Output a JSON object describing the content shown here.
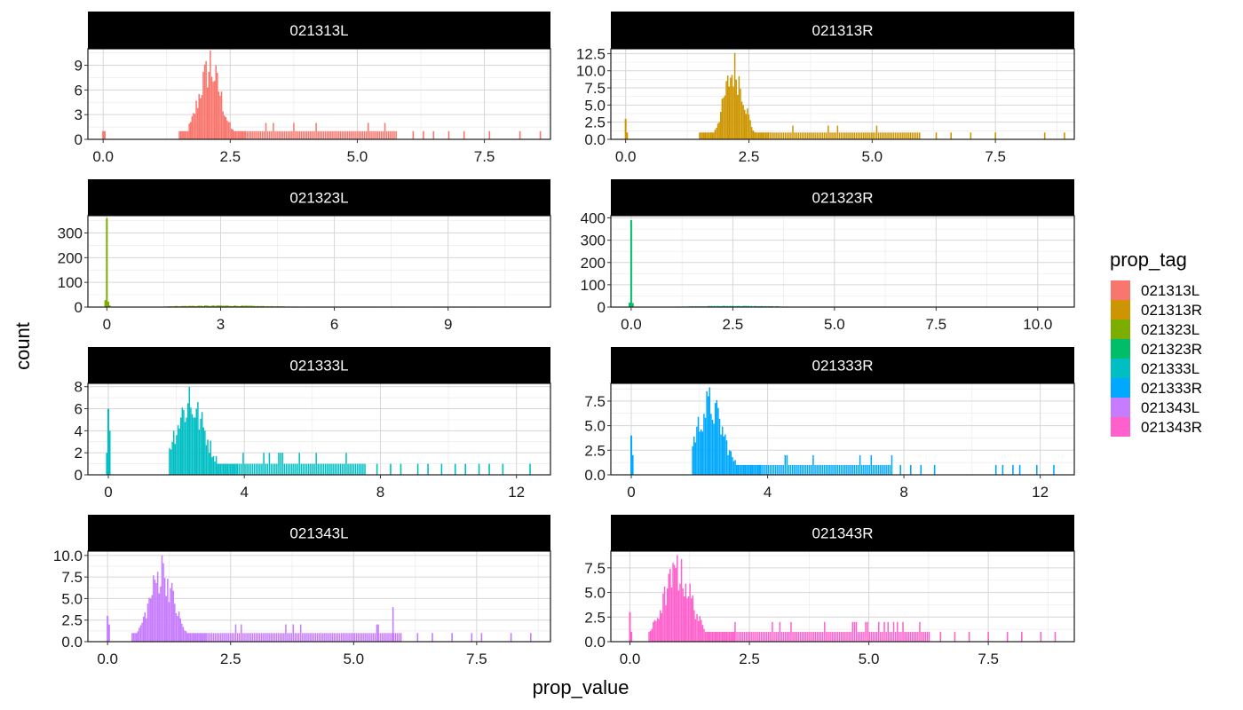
{
  "chart_data": {
    "type": "histogram",
    "layout": "faceted 4 rows x 2 columns, free scales",
    "xlabel": "prop_value",
    "ylabel": "count",
    "legend": {
      "title": "prop_tag",
      "position": "right",
      "entries": [
        {
          "label": "021313L",
          "color": "#F8766D"
        },
        {
          "label": "021313R",
          "color": "#CD9600"
        },
        {
          "label": "021323L",
          "color": "#7CAE00"
        },
        {
          "label": "021323R",
          "color": "#00BE67"
        },
        {
          "label": "021333L",
          "color": "#00BFC4"
        },
        {
          "label": "021333R",
          "color": "#00A9FF"
        },
        {
          "label": "021343L",
          "color": "#C77CFF"
        },
        {
          "label": "021343R",
          "color": "#FF61CC"
        }
      ]
    },
    "grid": true,
    "panels": [
      {
        "name": "021313L",
        "color": "#F8766D",
        "xlim": [
          -0.3,
          8.8
        ],
        "ylim": [
          0,
          11
        ],
        "xticks": [
          0,
          2.5,
          5,
          7.5
        ],
        "xtick_labels": [
          "0.0",
          "2.5",
          "5.0",
          "7.5"
        ],
        "yticks": [
          0,
          3,
          6,
          9
        ],
        "ytick_labels": [
          "0",
          "3",
          "6",
          "9"
        ],
        "spikes": [
          {
            "x": 0,
            "h": 1
          },
          {
            "x": 0.03,
            "h": 1
          }
        ],
        "peak": {
          "start": 1.5,
          "center": 2.1,
          "end": 2.8,
          "max": 10.8,
          "sigma": 0.22
        },
        "tail": {
          "start": 2.8,
          "end": 5.8,
          "level": 1
        },
        "outliers": [
          6.1,
          6.3,
          6.5,
          6.8,
          7.1,
          7.6,
          8.2,
          8.6
        ]
      },
      {
        "name": "021313R",
        "color": "#CD9600",
        "xlim": [
          -0.3,
          9.1
        ],
        "ylim": [
          0,
          13.2
        ],
        "xticks": [
          0,
          2.5,
          5,
          7.5
        ],
        "xtick_labels": [
          "0.0",
          "2.5",
          "5.0",
          "7.5"
        ],
        "yticks": [
          0,
          2.5,
          5,
          7.5,
          10,
          12.5
        ],
        "ytick_labels": [
          "0.0",
          "2.5",
          "5.0",
          "7.5",
          "10.0",
          "12.5"
        ],
        "spikes": [
          {
            "x": 0,
            "h": 3
          },
          {
            "x": 0.03,
            "h": 1
          }
        ],
        "peak": {
          "start": 1.5,
          "center": 2.2,
          "end": 2.9,
          "max": 12.6,
          "sigma": 0.2
        },
        "tail": {
          "start": 2.9,
          "end": 6.0,
          "level": 1
        },
        "outliers": [
          6.3,
          6.6,
          7.0,
          7.5,
          8.5,
          8.9
        ]
      },
      {
        "name": "021323L",
        "color": "#7CAE00",
        "xlim": [
          -0.5,
          11.7
        ],
        "ylim": [
          0,
          370
        ],
        "xticks": [
          0,
          3,
          6,
          9
        ],
        "xtick_labels": [
          "0",
          "3",
          "6",
          "9"
        ],
        "yticks": [
          0,
          100,
          200,
          300
        ],
        "ytick_labels": [
          "0",
          "100",
          "200",
          "300"
        ],
        "spikes": [
          {
            "x": 0,
            "h": 360
          },
          {
            "x": -0.04,
            "h": 28
          },
          {
            "x": 0.04,
            "h": 22
          },
          {
            "x": 0.08,
            "h": 6
          }
        ],
        "peak": {
          "start": 1.5,
          "center": 3.0,
          "end": 7.0,
          "max": 7,
          "sigma": 1.3
        },
        "tail": {
          "start": 7.0,
          "end": 10.5,
          "level": 1
        },
        "outliers": []
      },
      {
        "name": "021323R",
        "color": "#00BE67",
        "xlim": [
          -0.5,
          10.9
        ],
        "ylim": [
          0,
          410
        ],
        "xticks": [
          0,
          2.5,
          5,
          7.5,
          10
        ],
        "xtick_labels": [
          "0.0",
          "2.5",
          "5.0",
          "7.5",
          "10.0"
        ],
        "yticks": [
          0,
          100,
          200,
          300,
          400
        ],
        "ytick_labels": [
          "0",
          "100",
          "200",
          "300",
          "400"
        ],
        "spikes": [
          {
            "x": 0,
            "h": 390
          },
          {
            "x": -0.04,
            "h": 20
          },
          {
            "x": 0.04,
            "h": 18
          }
        ],
        "peak": {
          "start": 1.0,
          "center": 2.5,
          "end": 6.0,
          "max": 6,
          "sigma": 1.1
        },
        "tail": {
          "start": 6.0,
          "end": 10.0,
          "level": 1
        },
        "outliers": []
      },
      {
        "name": "021333L",
        "color": "#00BFC4",
        "xlim": [
          -0.6,
          13.0
        ],
        "ylim": [
          0,
          8.3
        ],
        "xticks": [
          0,
          4,
          8,
          12
        ],
        "xtick_labels": [
          "0",
          "4",
          "8",
          "12"
        ],
        "yticks": [
          0,
          2,
          4,
          6,
          8
        ],
        "ytick_labels": [
          "0",
          "2",
          "4",
          "6",
          "8"
        ],
        "spikes": [
          {
            "x": 0,
            "h": 6
          },
          {
            "x": 0.04,
            "h": 4
          },
          {
            "x": -0.04,
            "h": 2
          }
        ],
        "peak": {
          "start": 1.8,
          "center": 2.4,
          "end": 3.8,
          "max": 8,
          "sigma": 0.45
        },
        "tail": {
          "start": 3.8,
          "end": 7.6,
          "level": 1
        },
        "outliers": [
          7.9,
          8.3,
          8.6,
          9.1,
          9.4,
          9.8,
          10.2,
          10.5,
          10.9,
          11.2,
          11.6,
          12.4
        ]
      },
      {
        "name": "021333R",
        "color": "#00A9FF",
        "xlim": [
          -0.6,
          13.0
        ],
        "ylim": [
          0,
          9.3
        ],
        "xticks": [
          0,
          4,
          8,
          12
        ],
        "xtick_labels": [
          "0",
          "4",
          "8",
          "12"
        ],
        "yticks": [
          0,
          2.5,
          5,
          7.5
        ],
        "ytick_labels": [
          "0.0",
          "2.5",
          "5.0",
          "7.5"
        ],
        "spikes": [
          {
            "x": 0,
            "h": 4
          },
          {
            "x": 0.04,
            "h": 2
          }
        ],
        "peak": {
          "start": 1.8,
          "center": 2.3,
          "end": 3.8,
          "max": 8.9,
          "sigma": 0.4
        },
        "tail": {
          "start": 3.8,
          "end": 7.7,
          "level": 1
        },
        "outliers": [
          7.9,
          8.2,
          8.5,
          8.9,
          10.7,
          10.9,
          11.2,
          11.4,
          11.9,
          12.4
        ]
      },
      {
        "name": "021343L",
        "color": "#C77CFF",
        "xlim": [
          -0.4,
          9.0
        ],
        "ylim": [
          0,
          10.5
        ],
        "xticks": [
          0,
          2.5,
          5,
          7.5
        ],
        "xtick_labels": [
          "0.0",
          "2.5",
          "5.0",
          "7.5"
        ],
        "yticks": [
          0,
          2.5,
          5,
          7.5,
          10
        ],
        "ytick_labels": [
          "0.0",
          "2.5",
          "5.0",
          "7.5",
          "10.0"
        ],
        "spikes": [
          {
            "x": 0,
            "h": 3
          },
          {
            "x": 0.03,
            "h": 2
          }
        ],
        "peak": {
          "start": 0.5,
          "center": 1.1,
          "end": 2.0,
          "max": 10,
          "sigma": 0.25
        },
        "tail": {
          "start": 2.0,
          "end": 6.0,
          "level": 1
        },
        "outliers": [
          6.3,
          6.6,
          7.0,
          7.4,
          7.6,
          8.2,
          8.6
        ],
        "extra_bars": [
          {
            "x": 5.8,
            "h": 4
          },
          {
            "x": 5.5,
            "h": 2
          }
        ]
      },
      {
        "name": "021343R",
        "color": "#FF61CC",
        "xlim": [
          -0.4,
          9.3
        ],
        "ylim": [
          0,
          9.2
        ],
        "xticks": [
          0,
          2.5,
          5,
          7.5
        ],
        "xtick_labels": [
          "0.0",
          "2.5",
          "5.0",
          "7.5"
        ],
        "yticks": [
          0,
          2.5,
          5,
          7.5
        ],
        "ytick_labels": [
          "0.0",
          "2.5",
          "5.0",
          "7.5"
        ],
        "spikes": [
          {
            "x": 0,
            "h": 3
          },
          {
            "x": 0.03,
            "h": 1
          }
        ],
        "peak": {
          "start": 0.4,
          "center": 1.0,
          "end": 2.2,
          "max": 8.8,
          "sigma": 0.3
        },
        "tail": {
          "start": 2.2,
          "end": 6.3,
          "level": 1
        },
        "outliers": [
          6.5,
          6.8,
          7.1,
          7.5,
          7.9,
          8.2,
          8.6,
          8.9
        ]
      }
    ]
  }
}
